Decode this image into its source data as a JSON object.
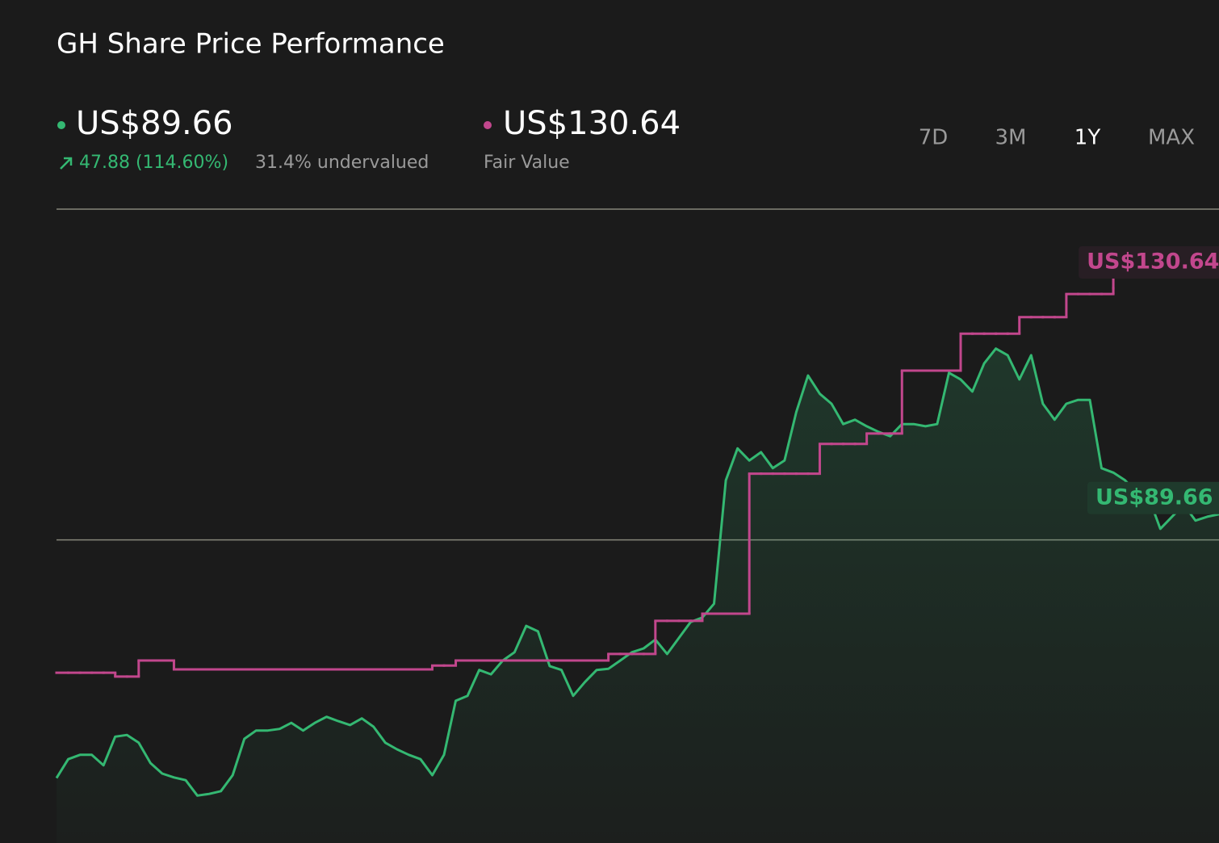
{
  "chart_data": {
    "type": "line",
    "title": "GH Share Price Performance",
    "price": {
      "value_label": "US$89.66",
      "change": "47.88 (114.60%)",
      "valuation": "31.4% undervalued"
    },
    "fair_value": {
      "value_label": "US$130.64",
      "label": "Fair Value"
    },
    "ranges": [
      "7D",
      "3M",
      "1Y",
      "MAX"
    ],
    "active_range": "1Y",
    "ylim": [
      30,
      145
    ],
    "yticks": [
      85,
      145
    ],
    "grid": true,
    "series": [
      {
        "color": "#34b872",
        "values": [
          41.78,
          45.2,
          46.0,
          46.0,
          44.1,
          49.3,
          49.6,
          48.2,
          44.5,
          42.6,
          41.9,
          41.4,
          38.6,
          38.9,
          39.4,
          42.3,
          48.9,
          50.4,
          50.4,
          50.7,
          51.8,
          50.4,
          51.8,
          52.9,
          52.1,
          51.4,
          52.6,
          51.1,
          48.2,
          47.0,
          46.0,
          45.2,
          42.3,
          46.0,
          55.8,
          56.7,
          61.4,
          60.6,
          63.1,
          64.6,
          69.4,
          68.4,
          62.1,
          61.4,
          56.7,
          59.2,
          61.4,
          61.6,
          63.1,
          64.6,
          65.3,
          66.9,
          64.3,
          67.2,
          70.1,
          70.9,
          73.4,
          95.8,
          101.6,
          99.4,
          100.9,
          98.0,
          99.4,
          108.2,
          114.8,
          111.5,
          109.7,
          106.0,
          106.8,
          105.6,
          104.6,
          103.8,
          106.0,
          106.0,
          105.6,
          106.0,
          115.3,
          114.1,
          111.9,
          117.0,
          119.7,
          118.5,
          114.1,
          118.5,
          109.7,
          106.8,
          109.7,
          110.4,
          110.4,
          98.0,
          97.2,
          95.8,
          93.6,
          92.8,
          87.0,
          89.2,
          91.4,
          88.5,
          89.2,
          89.66
        ]
      },
      {
        "name": "Fair Value",
        "color": "#c2478d",
        "values": [
          60.9,
          60.9,
          60.9,
          60.9,
          60.9,
          60.2,
          60.2,
          63.1,
          63.1,
          63.1,
          61.5,
          61.5,
          61.5,
          61.5,
          61.5,
          61.5,
          61.5,
          61.5,
          61.5,
          61.5,
          61.5,
          61.5,
          61.5,
          61.5,
          61.5,
          61.5,
          61.5,
          61.5,
          61.5,
          61.5,
          61.5,
          61.5,
          62.2,
          62.2,
          63.1,
          63.1,
          63.1,
          63.1,
          63.1,
          63.1,
          63.1,
          63.1,
          63.1,
          63.1,
          63.1,
          63.1,
          63.1,
          64.3,
          64.3,
          64.3,
          64.3,
          70.3,
          70.3,
          70.3,
          70.3,
          71.6,
          71.6,
          71.6,
          71.6,
          97.0,
          97.0,
          97.0,
          97.0,
          97.0,
          97.0,
          102.4,
          102.4,
          102.4,
          102.4,
          104.3,
          104.3,
          104.3,
          115.7,
          115.7,
          115.7,
          115.7,
          115.7,
          122.4,
          122.4,
          122.4,
          122.4,
          122.4,
          125.4,
          125.4,
          125.4,
          125.4,
          129.6,
          129.6,
          129.6,
          129.6,
          130.64,
          null,
          null,
          null,
          null,
          null,
          null,
          null,
          null,
          null
        ]
      }
    ]
  }
}
